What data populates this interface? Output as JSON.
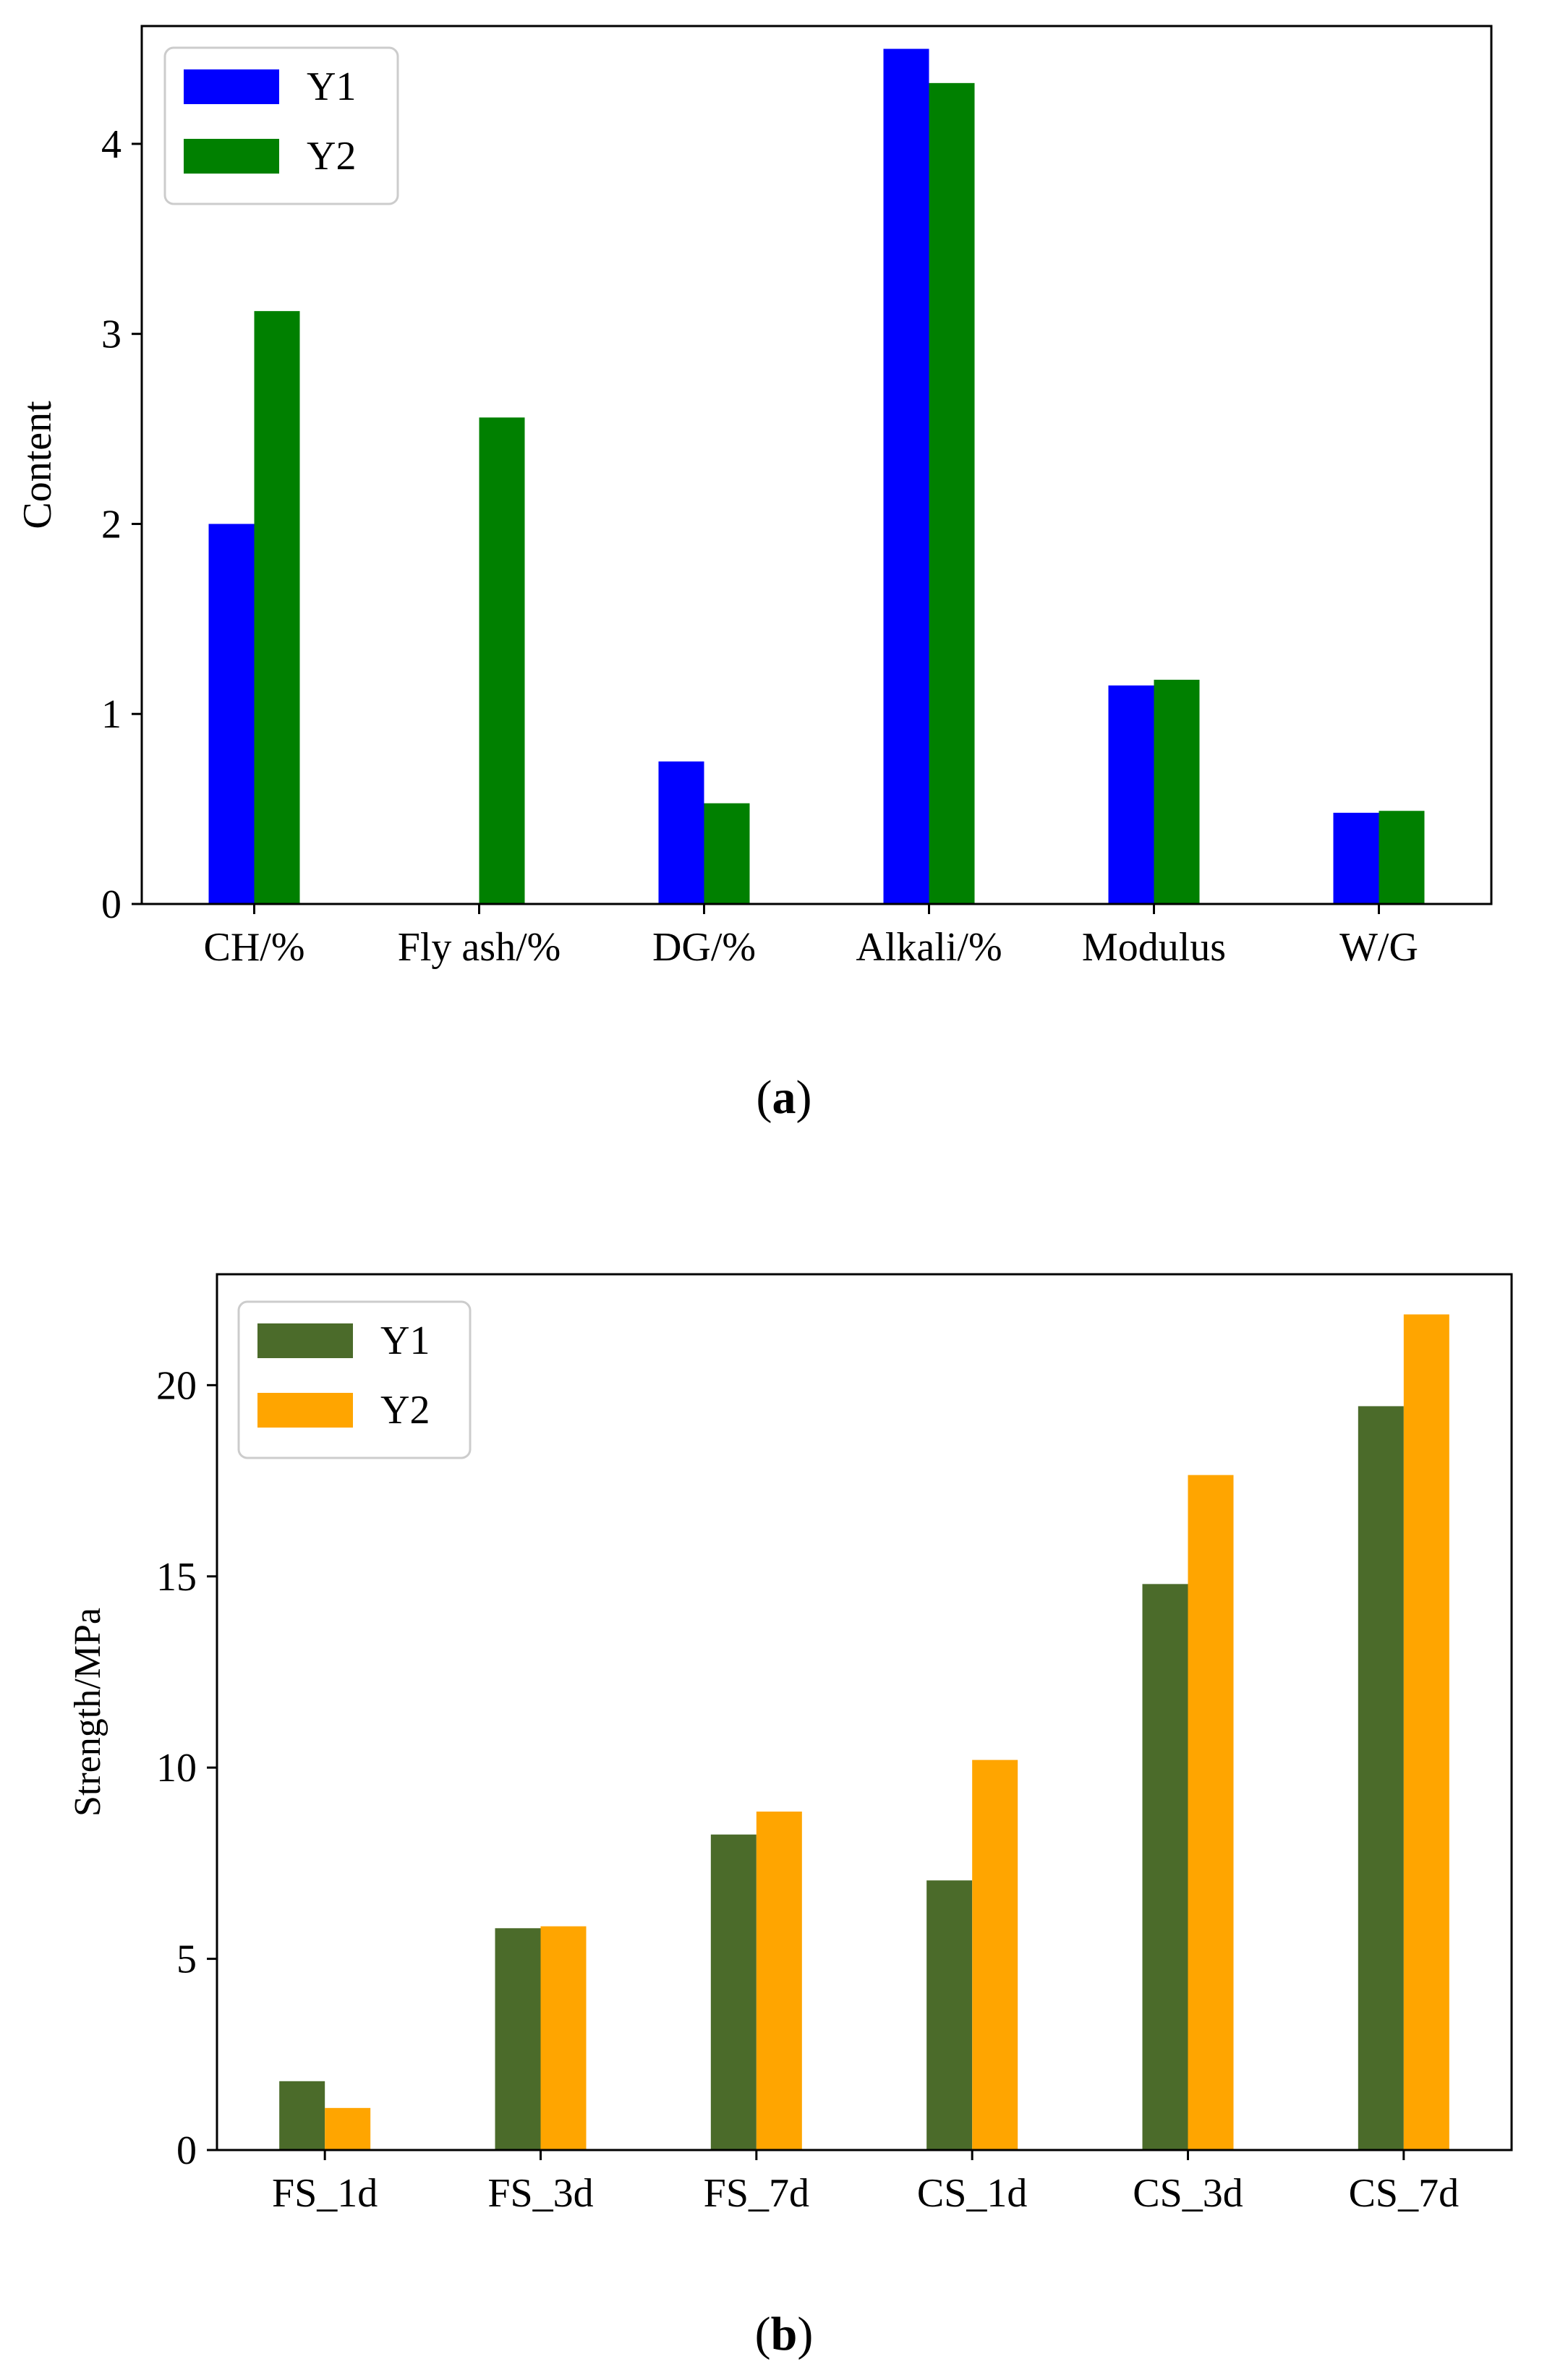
{
  "chart_data": [
    {
      "type": "bar",
      "panel_label": "a",
      "categories": [
        "CH/%",
        "Fly ash/%",
        "DG/%",
        "Alkali/%",
        "Modulus",
        "W/G"
      ],
      "series": [
        {
          "name": "Y1",
          "values": [
            2.0,
            0.0,
            0.75,
            4.5,
            1.15,
            0.48
          ]
        },
        {
          "name": "Y2",
          "values": [
            3.12,
            2.56,
            0.53,
            4.32,
            1.18,
            0.49
          ]
        }
      ],
      "title": "",
      "xlabel": "",
      "ylabel": "Content",
      "ylim": [
        0,
        4.62
      ],
      "yticks": [
        0,
        1,
        2,
        3,
        4
      ],
      "colors": [
        "#0000ff",
        "#008000"
      ],
      "grid": false,
      "legend_position": "upper-left"
    },
    {
      "type": "bar",
      "panel_label": "b",
      "categories": [
        "FS_1d",
        "FS_3d",
        "FS_7d",
        "CS_1d",
        "CS_3d",
        "CS_7d"
      ],
      "series": [
        {
          "name": "Y1",
          "values": [
            1.8,
            5.8,
            8.25,
            7.05,
            14.8,
            19.45
          ]
        },
        {
          "name": "Y2",
          "values": [
            1.1,
            5.85,
            8.85,
            10.2,
            17.65,
            21.85
          ]
        }
      ],
      "title": "",
      "xlabel": "",
      "ylabel": "Strength/MPa",
      "ylim": [
        0,
        22.9
      ],
      "yticks": [
        0,
        5,
        10,
        15,
        20
      ],
      "colors": [
        "#4b6b2a",
        "#ffa500"
      ],
      "grid": false,
      "legend_position": "upper-left"
    }
  ],
  "captions": {
    "a": {
      "open": "(",
      "letter": "a",
      "close": ")"
    },
    "b": {
      "open": "(",
      "letter": "b",
      "close": ")"
    }
  }
}
